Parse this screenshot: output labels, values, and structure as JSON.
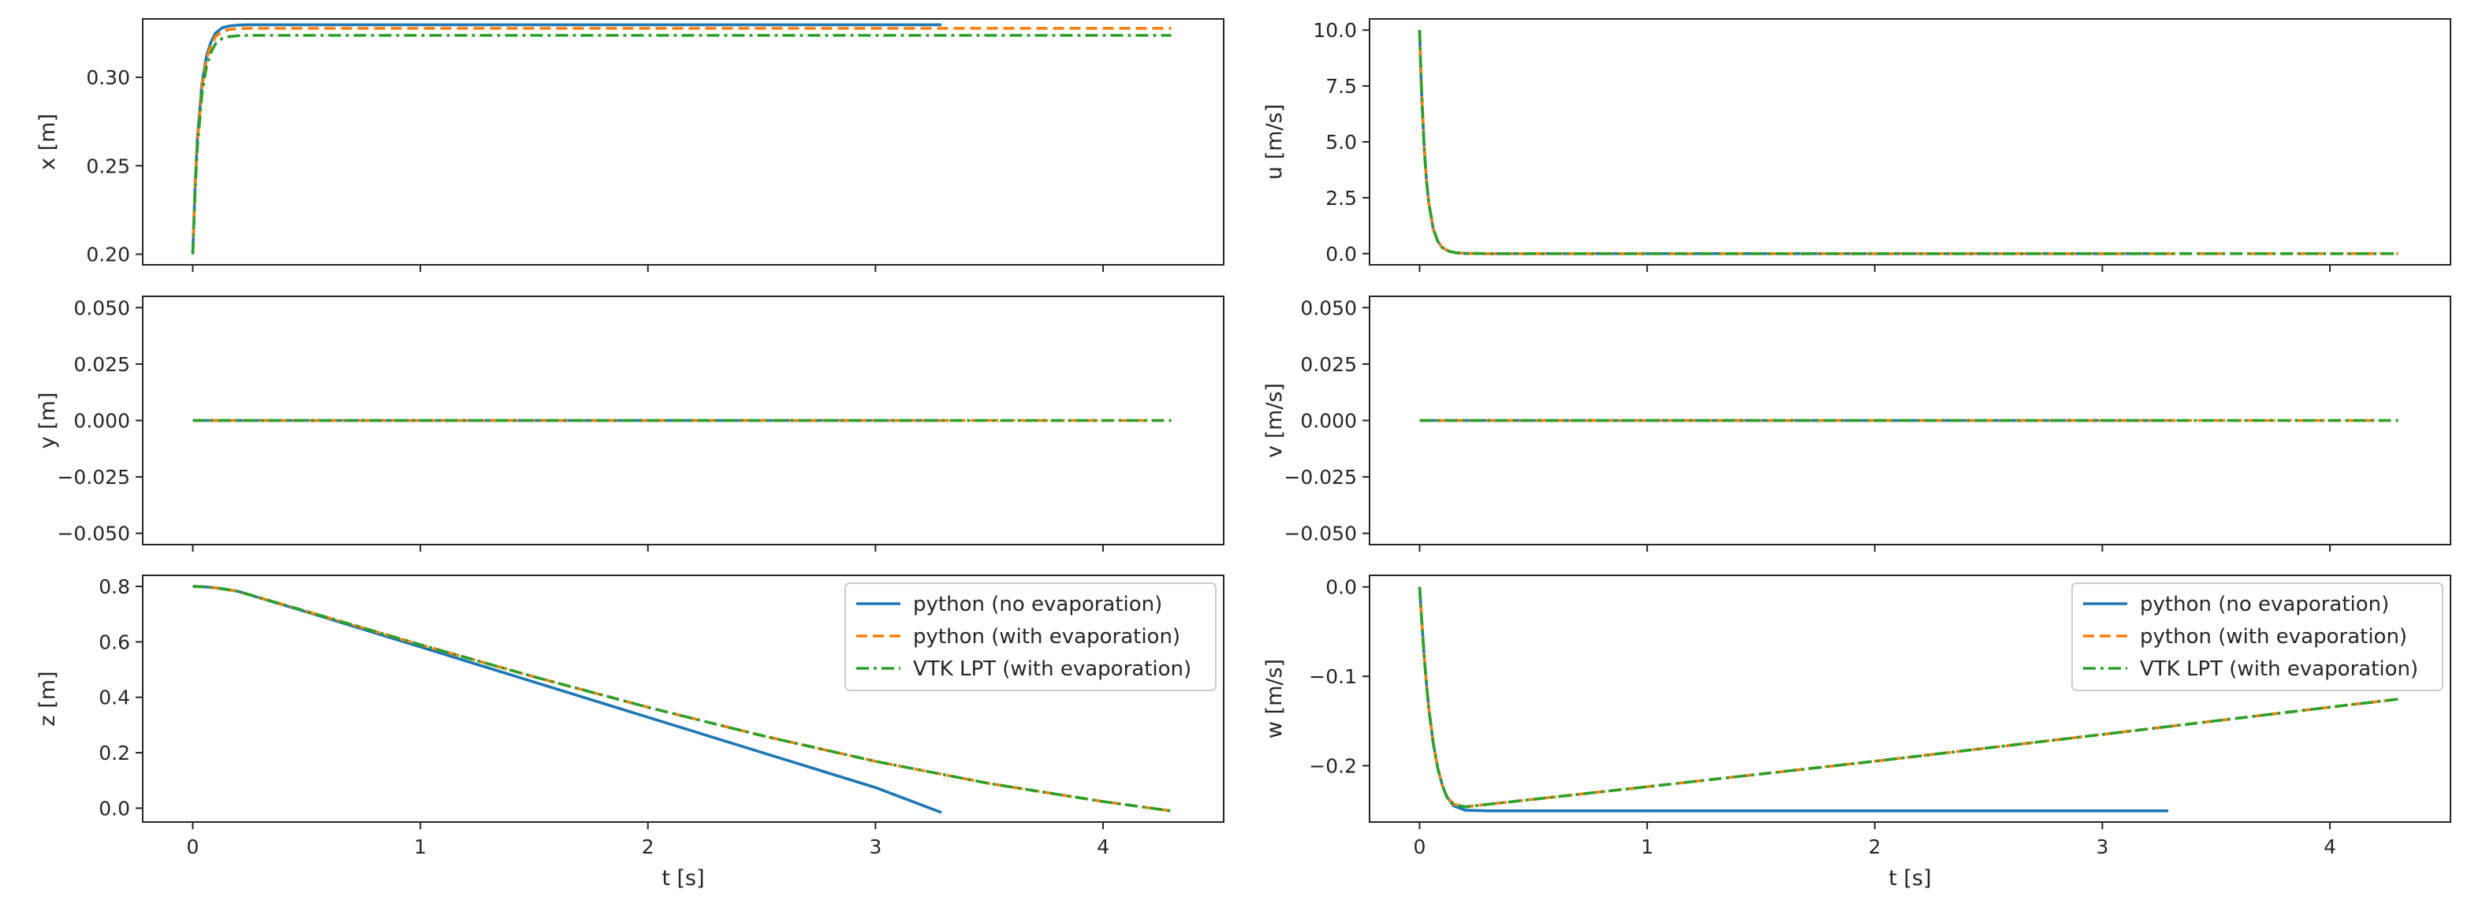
{
  "colors": {
    "python_no_evap": "#1f77b4",
    "python_with_evap": "#ff7f0e",
    "vtk_lpt": "#2ca02c",
    "axes_frame": "#262626"
  },
  "chart_data": [
    {
      "id": "x",
      "type": "line",
      "xlabel": "",
      "ylabel": "x [m]",
      "xlim": [
        -0.22,
        4.53
      ],
      "ylim": [
        0.194,
        0.333
      ],
      "xticks": [
        0,
        1,
        2,
        3,
        4
      ],
      "show_xtick_labels": false,
      "yticks": [
        0.2,
        0.25,
        0.3
      ],
      "ytick_labels": [
        "0.20",
        "0.25",
        "0.30"
      ],
      "legend": null,
      "series": [
        {
          "name": "python (no evaporation)",
          "style": "solid",
          "x": [
            0.0,
            0.01,
            0.02,
            0.04,
            0.06,
            0.08,
            0.1,
            0.13,
            0.16,
            0.2,
            0.25,
            0.3,
            1.0,
            2.0,
            3.0,
            3.29
          ],
          "y": [
            0.2,
            0.238,
            0.265,
            0.296,
            0.312,
            0.32,
            0.325,
            0.328,
            0.329,
            0.3295,
            0.3297,
            0.3297,
            0.3297,
            0.3297,
            0.3297,
            0.3297
          ]
        },
        {
          "name": "python (with evaporation)",
          "style": "dashed",
          "x": [
            0.0,
            0.01,
            0.02,
            0.04,
            0.06,
            0.08,
            0.1,
            0.13,
            0.16,
            0.2,
            0.25,
            0.3,
            1.0,
            2.0,
            3.0,
            4.0,
            4.3
          ],
          "y": [
            0.2,
            0.237,
            0.263,
            0.294,
            0.31,
            0.318,
            0.323,
            0.326,
            0.327,
            0.3275,
            0.3277,
            0.3277,
            0.3277,
            0.3277,
            0.3277,
            0.3277,
            0.3277
          ]
        },
        {
          "name": "VTK LPT (with evaporation)",
          "style": "dashdot",
          "x": [
            0.0,
            0.01,
            0.02,
            0.04,
            0.06,
            0.08,
            0.1,
            0.13,
            0.16,
            0.2,
            0.25,
            0.3,
            1.0,
            2.0,
            3.0,
            4.0,
            4.3
          ],
          "y": [
            0.2,
            0.235,
            0.26,
            0.29,
            0.306,
            0.314,
            0.319,
            0.322,
            0.323,
            0.3235,
            0.3237,
            0.3237,
            0.3237,
            0.3237,
            0.3237,
            0.3237,
            0.3237
          ]
        }
      ]
    },
    {
      "id": "u",
      "type": "line",
      "xlabel": "",
      "ylabel": "u [m/s]",
      "xlim": [
        -0.22,
        4.53
      ],
      "ylim": [
        -0.5,
        10.5
      ],
      "xticks": [
        0,
        1,
        2,
        3,
        4
      ],
      "show_xtick_labels": false,
      "yticks": [
        0.0,
        2.5,
        5.0,
        7.5,
        10.0
      ],
      "ytick_labels": [
        "0.0",
        "2.5",
        "5.0",
        "7.5",
        "10.0"
      ],
      "legend": null,
      "series": [
        {
          "name": "python (no evaporation)",
          "style": "solid",
          "x": [
            0.0,
            0.005,
            0.01,
            0.02,
            0.03,
            0.04,
            0.06,
            0.08,
            0.1,
            0.13,
            0.16,
            0.2,
            0.3,
            1.0,
            2.0,
            3.0,
            3.29
          ],
          "y": [
            10.0,
            8.3,
            6.9,
            4.8,
            3.3,
            2.3,
            1.1,
            0.55,
            0.27,
            0.1,
            0.04,
            0.01,
            0.0,
            0.0,
            0.0,
            0.0,
            0.0
          ]
        },
        {
          "name": "python (with evaporation)",
          "style": "dashed",
          "x": [
            0.0,
            0.005,
            0.01,
            0.02,
            0.03,
            0.04,
            0.06,
            0.08,
            0.1,
            0.13,
            0.16,
            0.2,
            0.3,
            1.0,
            2.0,
            3.0,
            4.0,
            4.3
          ],
          "y": [
            10.0,
            8.3,
            6.9,
            4.8,
            3.3,
            2.3,
            1.1,
            0.55,
            0.27,
            0.1,
            0.04,
            0.01,
            0.0,
            0.0,
            0.0,
            0.0,
            0.0,
            0.0
          ]
        },
        {
          "name": "VTK LPT (with evaporation)",
          "style": "dashdot",
          "x": [
            0.0,
            0.005,
            0.01,
            0.02,
            0.03,
            0.04,
            0.06,
            0.08,
            0.1,
            0.13,
            0.16,
            0.2,
            0.3,
            1.0,
            2.0,
            3.0,
            4.0,
            4.3
          ],
          "y": [
            10.0,
            8.3,
            6.9,
            4.8,
            3.3,
            2.3,
            1.1,
            0.55,
            0.27,
            0.1,
            0.04,
            0.01,
            0.0,
            0.0,
            0.0,
            0.0,
            0.0,
            0.0
          ]
        }
      ]
    },
    {
      "id": "y",
      "type": "line",
      "xlabel": "",
      "ylabel": "y [m]",
      "xlim": [
        -0.22,
        4.53
      ],
      "ylim": [
        -0.055,
        0.055
      ],
      "xticks": [
        0,
        1,
        2,
        3,
        4
      ],
      "show_xtick_labels": false,
      "yticks": [
        -0.05,
        -0.025,
        0.0,
        0.025,
        0.05
      ],
      "ytick_labels": [
        "−0.050",
        "−0.025",
        "0.000",
        "0.025",
        "0.050"
      ],
      "legend": null,
      "series": [
        {
          "name": "python (no evaporation)",
          "style": "solid",
          "x": [
            0.0,
            3.29
          ],
          "y": [
            0.0,
            0.0
          ]
        },
        {
          "name": "python (with evaporation)",
          "style": "dashed",
          "x": [
            0.0,
            4.3
          ],
          "y": [
            0.0,
            0.0
          ]
        },
        {
          "name": "VTK LPT (with evaporation)",
          "style": "dashdot",
          "x": [
            0.0,
            4.3
          ],
          "y": [
            0.0,
            0.0
          ]
        }
      ]
    },
    {
      "id": "v",
      "type": "line",
      "xlabel": "",
      "ylabel": "v [m/s]",
      "xlim": [
        -0.22,
        4.53
      ],
      "ylim": [
        -0.055,
        0.055
      ],
      "xticks": [
        0,
        1,
        2,
        3,
        4
      ],
      "show_xtick_labels": false,
      "yticks": [
        -0.05,
        -0.025,
        0.0,
        0.025,
        0.05
      ],
      "ytick_labels": [
        "−0.050",
        "−0.025",
        "0.000",
        "0.025",
        "0.050"
      ],
      "legend": null,
      "series": [
        {
          "name": "python (no evaporation)",
          "style": "solid",
          "x": [
            0.0,
            3.29
          ],
          "y": [
            0.0,
            0.0
          ]
        },
        {
          "name": "python (with evaporation)",
          "style": "dashed",
          "x": [
            0.0,
            4.3
          ],
          "y": [
            0.0,
            0.0
          ]
        },
        {
          "name": "VTK LPT (with evaporation)",
          "style": "dashdot",
          "x": [
            0.0,
            4.3
          ],
          "y": [
            0.0,
            0.0
          ]
        }
      ]
    },
    {
      "id": "z",
      "type": "line",
      "xlabel": "t [s]",
      "ylabel": "z [m]",
      "xlim": [
        -0.22,
        4.53
      ],
      "ylim": [
        -0.05,
        0.84
      ],
      "xticks": [
        0,
        1,
        2,
        3,
        4
      ],
      "show_xtick_labels": true,
      "xtick_labels": [
        "0",
        "1",
        "2",
        "3",
        "4"
      ],
      "yticks": [
        0.0,
        0.2,
        0.4,
        0.6,
        0.8
      ],
      "ytick_labels": [
        "0.0",
        "0.2",
        "0.4",
        "0.6",
        "0.8"
      ],
      "legend": "upper right",
      "series": [
        {
          "name": "python (no evaporation)",
          "style": "solid",
          "x": [
            0.0,
            0.05,
            0.1,
            0.15,
            0.2,
            0.3,
            0.5,
            1.0,
            2.0,
            3.0,
            3.29
          ],
          "y": [
            0.8,
            0.7985,
            0.795,
            0.789,
            0.782,
            0.757,
            0.708,
            0.582,
            0.328,
            0.0745,
            -0.0158
          ]
        },
        {
          "name": "python (with evaporation)",
          "style": "dashed",
          "x": [
            0.0,
            0.05,
            0.1,
            0.15,
            0.2,
            0.3,
            0.5,
            1.0,
            1.5,
            2.0,
            2.5,
            3.0,
            3.5,
            4.0,
            4.3
          ],
          "y": [
            0.8,
            0.7985,
            0.795,
            0.789,
            0.782,
            0.758,
            0.71,
            0.59,
            0.474,
            0.364,
            0.262,
            0.169,
            0.089,
            0.024,
            -0.01
          ]
        },
        {
          "name": "VTK LPT (with evaporation)",
          "style": "dashdot",
          "x": [
            0.0,
            0.05,
            0.1,
            0.15,
            0.2,
            0.3,
            0.5,
            1.0,
            1.5,
            2.0,
            2.5,
            3.0,
            3.5,
            4.0,
            4.3
          ],
          "y": [
            0.8,
            0.7985,
            0.795,
            0.789,
            0.782,
            0.758,
            0.71,
            0.59,
            0.474,
            0.364,
            0.262,
            0.169,
            0.089,
            0.024,
            -0.01
          ]
        }
      ]
    },
    {
      "id": "w",
      "type": "line",
      "xlabel": "t [s]",
      "ylabel": "w [m/s]",
      "xlim": [
        -0.22,
        4.53
      ],
      "ylim": [
        -0.263,
        0.013
      ],
      "xticks": [
        0,
        1,
        2,
        3,
        4
      ],
      "show_xtick_labels": true,
      "xtick_labels": [
        "0",
        "1",
        "2",
        "3",
        "4"
      ],
      "yticks": [
        -0.2,
        -0.1,
        0.0
      ],
      "ytick_labels": [
        "−0.2",
        "−0.1",
        "0.0"
      ],
      "legend": "upper right",
      "series": [
        {
          "name": "python (no evaporation)",
          "style": "solid",
          "x": [
            0.0,
            0.01,
            0.02,
            0.03,
            0.04,
            0.06,
            0.08,
            0.1,
            0.12,
            0.15,
            0.2,
            0.3,
            1.0,
            2.0,
            3.0,
            3.29
          ],
          "y": [
            0.0,
            -0.04,
            -0.077,
            -0.108,
            -0.135,
            -0.175,
            -0.203,
            -0.222,
            -0.235,
            -0.245,
            -0.2497,
            -0.2505,
            -0.2505,
            -0.2505,
            -0.2505,
            -0.2505
          ]
        },
        {
          "name": "python (with evaporation)",
          "style": "dashed",
          "x": [
            0.0,
            0.01,
            0.02,
            0.03,
            0.04,
            0.06,
            0.08,
            0.1,
            0.12,
            0.15,
            0.2,
            1.0,
            2.0,
            3.0,
            4.0,
            4.3
          ],
          "y": [
            0.0,
            -0.04,
            -0.077,
            -0.108,
            -0.135,
            -0.175,
            -0.203,
            -0.222,
            -0.235,
            -0.243,
            -0.246,
            -0.2235,
            -0.195,
            -0.165,
            -0.1345,
            -0.1255
          ]
        },
        {
          "name": "VTK LPT (with evaporation)",
          "style": "dashdot",
          "x": [
            0.0,
            0.01,
            0.02,
            0.03,
            0.04,
            0.06,
            0.08,
            0.1,
            0.12,
            0.15,
            0.2,
            1.0,
            2.0,
            3.0,
            4.0,
            4.3
          ],
          "y": [
            0.0,
            -0.04,
            -0.077,
            -0.108,
            -0.135,
            -0.175,
            -0.203,
            -0.222,
            -0.235,
            -0.243,
            -0.246,
            -0.2235,
            -0.195,
            -0.165,
            -0.1345,
            -0.1255
          ]
        }
      ]
    }
  ]
}
